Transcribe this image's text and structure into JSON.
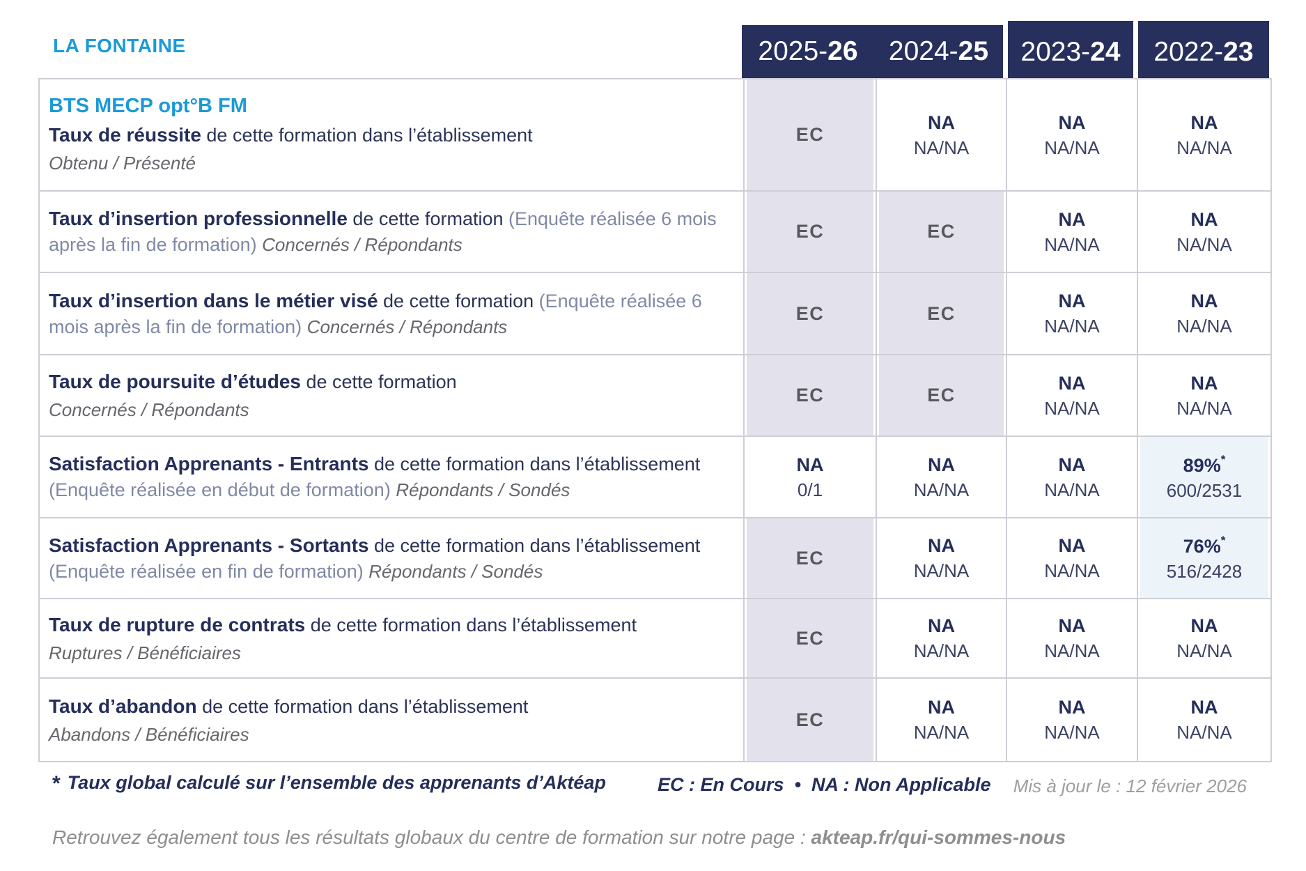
{
  "header": {
    "school": "LA FONTAINE"
  },
  "columns": [
    {
      "prefix": "2025-",
      "year": "26"
    },
    {
      "prefix": "2024-",
      "year": "25"
    },
    {
      "prefix": "2023-",
      "year": "24"
    },
    {
      "prefix": "2022-",
      "year": "23"
    }
  ],
  "rows": [
    {
      "program": "BTS MECP opt°B FM",
      "title": "Taux de réussite",
      "desc": " de cette formation dans l’établissement",
      "paren": "",
      "ratio": "Obtenu / Présenté",
      "ratio_inline": false,
      "cells": [
        {
          "type": "ec",
          "main": "EC"
        },
        {
          "type": "na",
          "main": "NA",
          "sub": "NA/NA"
        },
        {
          "type": "na",
          "main": "NA",
          "sub": "NA/NA"
        },
        {
          "type": "na",
          "main": "NA",
          "sub": "NA/NA"
        }
      ]
    },
    {
      "program": "",
      "title": "Taux d’insertion professionnelle",
      "desc": " de cette formation ",
      "paren": "(Enquête réalisée 6 mois après la fin de formation) ",
      "ratio": "Concernés / Répondants",
      "ratio_inline": true,
      "cells": [
        {
          "type": "ec",
          "main": "EC"
        },
        {
          "type": "ec",
          "main": "EC"
        },
        {
          "type": "na",
          "main": "NA",
          "sub": "NA/NA"
        },
        {
          "type": "na",
          "main": "NA",
          "sub": "NA/NA"
        }
      ]
    },
    {
      "program": "",
      "title": "Taux d’insertion dans le métier visé",
      "desc": " de cette formation ",
      "paren": "(Enquête réalisée 6 mois après la fin de formation) ",
      "ratio": "Concernés / Répondants",
      "ratio_inline": true,
      "cells": [
        {
          "type": "ec",
          "main": "EC"
        },
        {
          "type": "ec",
          "main": "EC"
        },
        {
          "type": "na",
          "main": "NA",
          "sub": "NA/NA"
        },
        {
          "type": "na",
          "main": "NA",
          "sub": "NA/NA"
        }
      ]
    },
    {
      "program": "",
      "title": "Taux de poursuite d’études",
      "desc": " de cette formation",
      "paren": "",
      "ratio": "Concernés / Répondants",
      "ratio_inline": false,
      "cells": [
        {
          "type": "ec",
          "main": "EC"
        },
        {
          "type": "ec",
          "main": "EC"
        },
        {
          "type": "na",
          "main": "NA",
          "sub": "NA/NA"
        },
        {
          "type": "na",
          "main": "NA",
          "sub": "NA/NA"
        }
      ]
    },
    {
      "program": "",
      "title": "Satisfaction Apprenants - Entrants",
      "desc": " de cette formation dans l’établissement ",
      "paren": "(Enquête réalisée en début de formation) ",
      "ratio": "Répondants / Sondés",
      "ratio_inline": true,
      "cells": [
        {
          "type": "na",
          "main": "NA",
          "sub": "0/1"
        },
        {
          "type": "na",
          "main": "NA",
          "sub": "NA/NA"
        },
        {
          "type": "na",
          "main": "NA",
          "sub": "NA/NA"
        },
        {
          "type": "pct",
          "main": "89%",
          "star": "*",
          "sub": "600/2531"
        }
      ]
    },
    {
      "program": "",
      "title": "Satisfaction Apprenants - Sortants",
      "desc": " de cette formation dans l’établissement ",
      "paren": "(Enquête réalisée en fin de formation) ",
      "ratio": "Répondants / Sondés",
      "ratio_inline": true,
      "cells": [
        {
          "type": "ec",
          "main": "EC"
        },
        {
          "type": "na",
          "main": "NA",
          "sub": "NA/NA"
        },
        {
          "type": "na",
          "main": "NA",
          "sub": "NA/NA"
        },
        {
          "type": "pct",
          "main": "76%",
          "star": "*",
          "sub": "516/2428"
        }
      ]
    },
    {
      "program": "",
      "title": "Taux de rupture de contrats",
      "desc": " de cette formation dans l’établissement",
      "paren": "",
      "ratio": "Ruptures / Bénéficiaires",
      "ratio_inline": false,
      "cells": [
        {
          "type": "ec",
          "main": "EC"
        },
        {
          "type": "na",
          "main": "NA",
          "sub": "NA/NA"
        },
        {
          "type": "na",
          "main": "NA",
          "sub": "NA/NA"
        },
        {
          "type": "na",
          "main": "NA",
          "sub": "NA/NA"
        }
      ]
    },
    {
      "program": "",
      "title": "Taux d’abandon",
      "desc": " de cette formation dans l’établissement",
      "paren": "",
      "ratio": "Abandons / Bénéficiaires",
      "ratio_inline": false,
      "cells": [
        {
          "type": "ec",
          "main": "EC"
        },
        {
          "type": "na",
          "main": "NA",
          "sub": "NA/NA"
        },
        {
          "type": "na",
          "main": "NA",
          "sub": "NA/NA"
        },
        {
          "type": "na",
          "main": "NA",
          "sub": "NA/NA"
        }
      ]
    }
  ],
  "footer": {
    "star": "*",
    "note": "Taux global calculé sur l’ensemble des apprenants d’Aktéap",
    "legend": "EC : En Cours  •  NA : Non Applicable",
    "updated": "Mis à jour le : 12 février 2026",
    "more_prefix": "Retrouvez également tous les résultats globaux du centre de formation sur notre page : ",
    "more_link": "akteap.fr/qui-sommes-nous"
  },
  "legend_meanings": {
    "EC": "En Cours",
    "NA": "Non Applicable"
  },
  "colors": {
    "accent_blue": "#1a9ad7",
    "navy": "#252e5a",
    "header_bg": "#272f5c",
    "ec_cell_bg": "#e3e2ec",
    "pct_cell_bg": "#ecf4f9",
    "grid_line": "#cdced6"
  }
}
